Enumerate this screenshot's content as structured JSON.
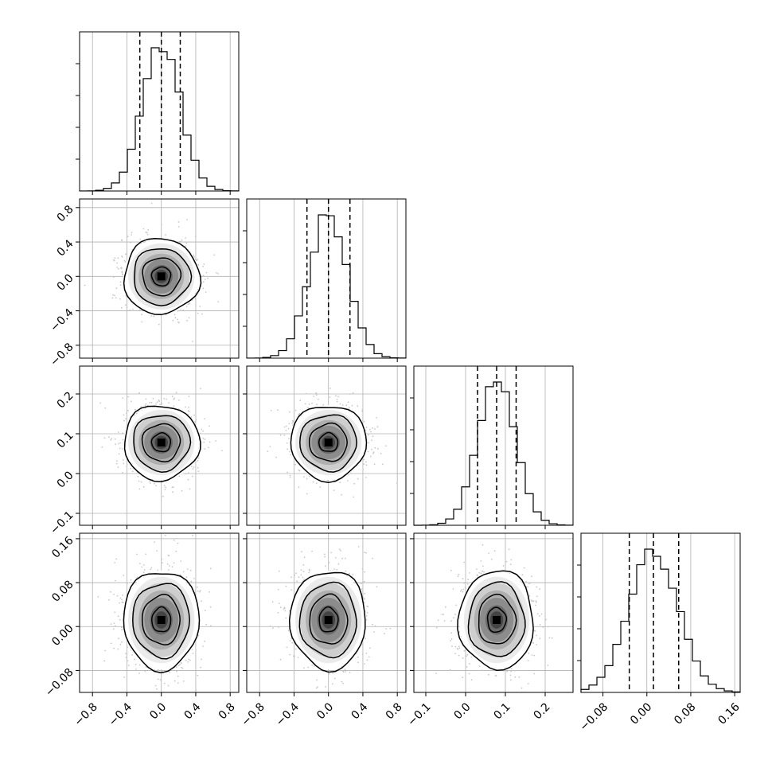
{
  "chart_data": {
    "type": "corner",
    "parameters": 4,
    "grid": true,
    "histogram": {
      "style": "step",
      "quantile_lines": "dashed",
      "quantiles": [
        0.16,
        0.5,
        0.84
      ]
    },
    "scatter": {
      "style": "density contours with greyscale 2D histogram and points",
      "contour_levels": 4
    },
    "axes": [
      {
        "range": [
          -0.95,
          0.9
        ],
        "tick_values": [
          -0.8,
          -0.4,
          0.0,
          0.4,
          0.8
        ],
        "tick_labels": [
          "−0.8",
          "−0.4",
          "0.0",
          "0.4",
          "0.8"
        ],
        "mean": 0.0,
        "std": 0.22,
        "quantiles": [
          -0.25,
          0.0,
          0.22
        ]
      },
      {
        "range": [
          -0.95,
          0.9
        ],
        "tick_values": [
          -0.8,
          -0.4,
          0.0,
          0.4,
          0.8
        ],
        "tick_labels": [
          "−0.8",
          "−0.4",
          "0.0",
          "0.4",
          "0.8"
        ],
        "mean": 0.0,
        "std": 0.22,
        "quantiles": [
          -0.25,
          0.0,
          0.25
        ]
      },
      {
        "range": [
          -0.13,
          0.27
        ],
        "tick_values": [
          -0.1,
          0.0,
          0.1,
          0.2
        ],
        "tick_labels": [
          "−0.1",
          "0.0",
          "0.1",
          "0.2"
        ],
        "mean": 0.078,
        "std": 0.047,
        "quantiles": [
          0.03,
          0.078,
          0.127
        ]
      },
      {
        "range": [
          -0.12,
          0.17
        ],
        "tick_values": [
          -0.08,
          0.0,
          0.08,
          0.16
        ],
        "tick_labels": [
          "−0.08",
          "0.00",
          "0.08",
          "0.16"
        ],
        "mean": 0.012,
        "std": 0.045,
        "quantiles": [
          -0.032,
          0.012,
          0.058
        ]
      }
    ],
    "colors": {
      "line": "#000000",
      "grid": "#b0b0b0",
      "points": "#c8c8c8",
      "density_fill": "#000000"
    }
  }
}
